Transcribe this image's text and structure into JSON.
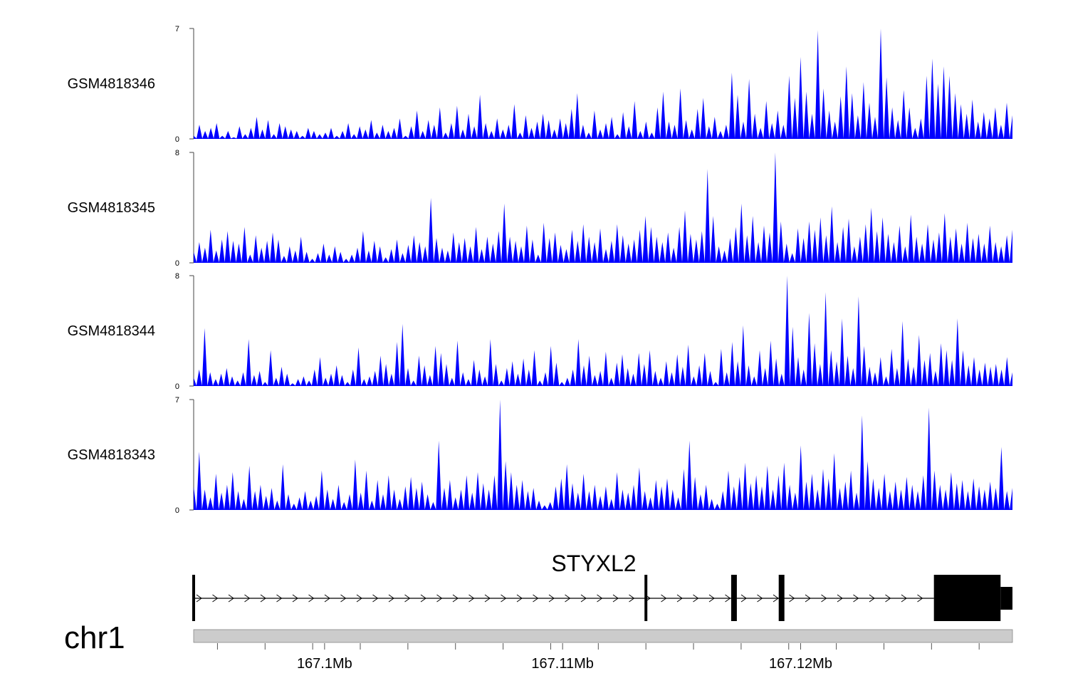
{
  "chart_data": {
    "type": "area",
    "chromosome": "chr1",
    "region_mb": [
      167.0945,
      167.1289
    ],
    "fill_color": "#0000ff",
    "tracks": [
      {
        "name": "GSM4818346",
        "ymax": 7,
        "ymin": 0,
        "ymax_label": "7",
        "ymin_label": "0",
        "values": [
          0.2,
          0.9,
          0.5,
          0.7,
          1.0,
          0.2,
          0.5,
          0.1,
          0.8,
          0.3,
          0.7,
          1.4,
          0.6,
          1.2,
          0.3,
          1.0,
          0.8,
          0.6,
          0.5,
          0.2,
          0.7,
          0.5,
          0.3,
          0.4,
          0.7,
          0.2,
          0.5,
          1.0,
          0.3,
          0.8,
          0.6,
          1.2,
          0.4,
          0.9,
          0.5,
          0.7,
          1.3,
          0.2,
          0.8,
          1.8,
          0.5,
          1.2,
          0.9,
          2.0,
          0.4,
          1.0,
          2.1,
          0.6,
          1.6,
          0.8,
          2.8,
          1.0,
          0.5,
          1.3,
          0.6,
          0.9,
          2.2,
          0.4,
          1.5,
          0.7,
          1.1,
          1.6,
          1.2,
          0.6,
          1.3,
          1.0,
          1.9,
          2.9,
          0.9,
          0.4,
          1.8,
          0.6,
          1.0,
          1.4,
          0.3,
          1.7,
          0.8,
          2.4,
          0.5,
          1.1,
          0.4,
          2.0,
          3.0,
          1.1,
          0.9,
          3.2,
          1.2,
          0.6,
          1.9,
          2.6,
          0.8,
          1.4,
          0.5,
          0.9,
          4.2,
          2.8,
          1.1,
          3.8,
          1.6,
          0.7,
          2.4,
          1.0,
          1.8,
          0.9,
          4.0,
          2.6,
          5.2,
          3.0,
          1.6,
          6.9,
          3.2,
          1.8,
          1.1,
          2.7,
          4.6,
          2.9,
          1.5,
          3.6,
          2.3,
          1.4,
          7.0,
          3.9,
          2.0,
          1.2,
          3.1,
          2.0,
          0.7,
          1.3,
          4.0,
          5.1,
          3.5,
          4.6,
          4.0,
          2.9,
          2.2,
          1.6,
          2.5,
          1.1,
          1.7,
          1.3,
          2.0,
          0.9,
          2.3,
          1.5
        ]
      },
      {
        "name": "GSM4818345",
        "ymax": 8,
        "ymin": 0,
        "ymax_label": "8",
        "ymin_label": "0",
        "values": [
          0.8,
          1.5,
          1.1,
          2.4,
          0.9,
          1.7,
          2.3,
          1.6,
          1.4,
          2.6,
          0.6,
          2.0,
          1.1,
          1.6,
          2.2,
          1.7,
          0.5,
          1.2,
          0.9,
          1.9,
          0.8,
          0.3,
          0.7,
          1.4,
          0.6,
          1.2,
          0.8,
          0.3,
          0.6,
          1.1,
          2.3,
          0.9,
          1.6,
          1.2,
          0.4,
          1.0,
          1.7,
          0.7,
          1.3,
          2.0,
          1.5,
          1.2,
          4.7,
          1.8,
          1.1,
          0.9,
          2.2,
          1.5,
          1.8,
          1.2,
          2.6,
          1.0,
          1.9,
          1.4,
          2.3,
          4.3,
          1.9,
          1.6,
          1.2,
          2.7,
          1.7,
          0.6,
          2.9,
          1.8,
          2.2,
          1.3,
          1.0,
          2.4,
          1.6,
          2.8,
          1.9,
          1.5,
          2.5,
          1.0,
          1.6,
          2.8,
          2.0,
          1.4,
          1.7,
          2.4,
          3.4,
          2.6,
          1.9,
          1.5,
          2.2,
          1.1,
          2.6,
          3.8,
          2.1,
          1.7,
          2.3,
          6.8,
          3.4,
          1.2,
          0.9,
          1.8,
          2.6,
          4.3,
          2.0,
          3.4,
          1.5,
          2.7,
          2.2,
          8.1,
          3.0,
          1.4,
          0.7,
          2.5,
          1.8,
          3.0,
          2.4,
          3.3,
          2.0,
          4.1,
          1.5,
          2.6,
          3.2,
          1.2,
          1.9,
          2.8,
          4.0,
          2.3,
          3.3,
          2.1,
          1.5,
          2.7,
          1.2,
          3.5,
          1.9,
          1.4,
          2.8,
          1.7,
          2.2,
          3.6,
          1.9,
          2.5,
          1.4,
          2.9,
          1.8,
          2.1,
          1.4,
          2.7,
          1.5,
          1.2,
          2.0,
          2.4
        ]
      },
      {
        "name": "GSM4818344",
        "ymax": 8,
        "ymin": 0,
        "ymax_label": "8",
        "ymin_label": "0",
        "values": [
          0.6,
          1.2,
          4.2,
          1.0,
          0.5,
          0.9,
          1.3,
          0.7,
          0.4,
          1.0,
          3.4,
          0.8,
          1.1,
          0.3,
          2.6,
          0.6,
          1.4,
          0.9,
          0.2,
          0.5,
          0.7,
          0.4,
          1.2,
          2.1,
          0.6,
          0.9,
          1.5,
          0.8,
          0.3,
          1.2,
          2.8,
          0.5,
          0.7,
          1.1,
          2.2,
          1.6,
          0.9,
          3.2,
          4.5,
          1.3,
          0.4,
          2.2,
          1.5,
          0.8,
          2.9,
          2.4,
          1.6,
          0.6,
          3.3,
          1.0,
          0.5,
          1.9,
          1.2,
          0.7,
          3.4,
          1.6,
          0.4,
          1.3,
          1.8,
          0.9,
          2.0,
          1.2,
          2.6,
          0.4,
          1.0,
          2.9,
          1.7,
          0.3,
          0.6,
          1.2,
          3.4,
          1.5,
          2.2,
          0.8,
          1.1,
          2.5,
          0.6,
          1.7,
          2.3,
          1.3,
          0.9,
          2.4,
          1.6,
          2.6,
          1.1,
          0.6,
          1.8,
          1.0,
          2.3,
          1.4,
          3.0,
          0.7,
          1.5,
          2.4,
          1.1,
          0.3,
          2.7,
          1.0,
          3.2,
          1.8,
          4.4,
          1.5,
          0.7,
          2.6,
          1.3,
          3.3,
          2.0,
          0.9,
          8.0,
          4.3,
          2.1,
          1.2,
          5.3,
          3.1,
          1.6,
          6.8,
          2.6,
          1.8,
          4.9,
          2.2,
          1.3,
          6.5,
          2.9,
          1.4,
          1.0,
          2.1,
          0.7,
          2.7,
          1.3,
          4.7,
          2.0,
          1.4,
          3.7,
          1.9,
          2.4,
          1.1,
          3.1,
          2.6,
          1.9,
          4.9,
          2.6,
          1.5,
          2.1,
          1.2,
          1.7,
          1.4,
          1.6,
          1.2,
          2.1,
          1.0
        ]
      },
      {
        "name": "GSM4818343",
        "ymax": 7,
        "ymin": 0,
        "ymax_label": "7",
        "ymin_label": "0",
        "values": [
          1.5,
          3.7,
          1.3,
          0.8,
          2.3,
          1.1,
          1.6,
          2.4,
          1.2,
          0.7,
          2.8,
          1.2,
          1.6,
          0.9,
          1.4,
          0.6,
          2.9,
          1.0,
          0.4,
          0.8,
          1.2,
          0.6,
          0.9,
          2.5,
          1.3,
          0.7,
          1.6,
          0.5,
          1.0,
          3.2,
          1.1,
          2.5,
          0.6,
          1.9,
          1.0,
          2.2,
          1.3,
          0.7,
          1.5,
          2.1,
          1.4,
          1.8,
          1.0,
          0.5,
          4.4,
          1.4,
          1.9,
          0.8,
          1.3,
          2.2,
          1.1,
          2.4,
          1.7,
          1.3,
          2.2,
          7.0,
          3.1,
          2.4,
          1.6,
          1.9,
          1.2,
          1.4,
          0.6,
          0.3,
          0.5,
          1.5,
          2.0,
          2.9,
          1.7,
          1.1,
          2.3,
          1.2,
          1.6,
          0.9,
          1.5,
          0.7,
          2.4,
          1.3,
          1.1,
          1.6,
          2.7,
          1.2,
          0.8,
          1.9,
          1.5,
          2.0,
          1.3,
          0.8,
          2.6,
          4.4,
          2.1,
          1.0,
          1.6,
          0.7,
          0.4,
          1.2,
          2.5,
          1.5,
          2.1,
          3.0,
          1.7,
          2.2,
          1.5,
          2.8,
          1.3,
          2.2,
          3.0,
          1.6,
          1.1,
          4.1,
          1.8,
          2.3,
          1.3,
          2.6,
          2.0,
          3.6,
          1.4,
          1.8,
          2.5,
          1.1,
          6.0,
          3.1,
          2.0,
          1.4,
          2.3,
          1.2,
          1.8,
          1.3,
          2.1,
          1.6,
          1.2,
          2.2,
          6.5,
          2.5,
          1.6,
          1.3,
          2.4,
          1.7,
          1.9,
          1.2,
          2.0,
          1.5,
          1.3,
          1.8,
          1.4,
          4.0,
          1.2,
          1.4
        ]
      }
    ],
    "gene": {
      "name": "STYXL2",
      "strand": "+",
      "exon_positions_mb": [
        167.0945,
        167.1135,
        167.1172,
        167.1192
      ],
      "last_exon_mb": [
        167.1256,
        167.1284
      ],
      "utr_end_mb": 167.1289
    },
    "x_axis": {
      "minor_ticks_mb": [
        167.0955,
        167.0975,
        167.0995,
        167.1015,
        167.1035,
        167.1055,
        167.1075,
        167.1095,
        167.1115,
        167.1135,
        167.1155,
        167.1175,
        167.1195,
        167.1215,
        167.1235,
        167.1255,
        167.1275
      ],
      "labeled_ticks": [
        {
          "position_mb": 167.1,
          "label": "167.1Mb"
        },
        {
          "position_mb": 167.11,
          "label": "167.11Mb"
        },
        {
          "position_mb": 167.12,
          "label": "167.12Mb"
        }
      ]
    }
  }
}
